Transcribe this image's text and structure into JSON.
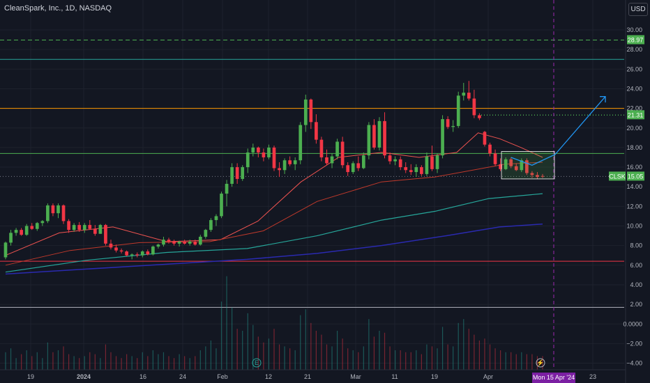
{
  "header": {
    "title": "CleanSpark, Inc., 1D, NASDAQ",
    "currency_button": "USD"
  },
  "colors": {
    "background": "#131722",
    "up": "#26a69a",
    "up_body": "#4caf50",
    "down": "#f23645",
    "ma_short": "#ef5350",
    "ma_mid": "#26a69a",
    "ma_long": "#2a2ab0",
    "crosshair": "#9c27b0",
    "projection": "#2196f3"
  },
  "badges": {
    "level_2897": "28.97",
    "level_2131": "21.31",
    "ticker": "CLSK",
    "last_price": "15.05"
  },
  "crosshair_date": "Mon 15 Apr '24",
  "chart_data": {
    "type": "candlestick",
    "y_ticks": [
      "30.00",
      "28.00",
      "26.00",
      "24.00",
      "22.00",
      "20.00",
      "18.00",
      "16.00",
      "14.00",
      "12.00",
      "10.00",
      "8.00",
      "6.00",
      "4.00",
      "2.00",
      "0.0000",
      "−2.00",
      "−4.00"
    ],
    "x_ticks": [
      "19",
      "2024",
      "16",
      "24",
      "Feb",
      "12",
      "21",
      "Mar",
      "11",
      "19",
      "Apr",
      "23"
    ],
    "horizontal_levels": [
      {
        "value": 28.97,
        "style": "dashed",
        "color": "#4caf50"
      },
      {
        "value": 27.0,
        "style": "solid",
        "color": "#26a69a"
      },
      {
        "value": 22.0,
        "style": "solid",
        "color": "#ff9800"
      },
      {
        "value": 21.31,
        "style": "dotted",
        "color": "#4caf50"
      },
      {
        "value": 17.4,
        "style": "solid",
        "color": "#4caf50"
      },
      {
        "value": 15.05,
        "style": "dotted",
        "color": "#787b86"
      },
      {
        "value": 6.4,
        "style": "solid",
        "color": "#f23645"
      },
      {
        "value": 1.7,
        "style": "solid",
        "color": "#b2b5be"
      }
    ],
    "candles": [
      [
        6.8,
        8.4,
        6.6,
        8.3
      ],
      [
        8.3,
        9.6,
        8.0,
        9.3
      ],
      [
        9.3,
        9.8,
        9.0,
        9.6
      ],
      [
        9.6,
        9.8,
        9.0,
        9.1
      ],
      [
        9.1,
        10.2,
        9.0,
        10.0
      ],
      [
        10.0,
        10.3,
        9.6,
        9.7
      ],
      [
        9.7,
        10.4,
        9.5,
        10.3
      ],
      [
        10.3,
        10.6,
        10.0,
        10.5
      ],
      [
        10.5,
        12.3,
        10.3,
        12.1
      ],
      [
        12.1,
        12.3,
        11.0,
        11.3
      ],
      [
        11.3,
        12.3,
        10.8,
        12.1
      ],
      [
        12.1,
        12.2,
        10.2,
        10.5
      ],
      [
        10.5,
        10.7,
        9.3,
        9.6
      ],
      [
        9.6,
        10.3,
        9.4,
        10.1
      ],
      [
        10.1,
        10.4,
        9.4,
        9.6
      ],
      [
        9.6,
        10.3,
        9.3,
        10.1
      ],
      [
        10.1,
        10.6,
        9.6,
        9.7
      ],
      [
        9.7,
        10.1,
        9.0,
        9.2
      ],
      [
        9.2,
        10.2,
        9.2,
        10.1
      ],
      [
        10.1,
        10.2,
        8.0,
        8.2
      ],
      [
        8.2,
        8.6,
        7.6,
        7.8
      ],
      [
        7.8,
        8.1,
        7.3,
        7.5
      ],
      [
        7.5,
        7.7,
        7.2,
        7.4
      ],
      [
        7.4,
        7.5,
        6.9,
        7.0
      ],
      [
        7.0,
        7.2,
        6.6,
        7.1
      ],
      [
        7.1,
        7.3,
        6.8,
        7.0
      ],
      [
        7.0,
        7.5,
        6.8,
        7.4
      ],
      [
        7.4,
        7.6,
        7.0,
        7.1
      ],
      [
        7.1,
        8.0,
        7.0,
        7.9
      ],
      [
        7.9,
        8.2,
        7.7,
        8.1
      ],
      [
        8.1,
        8.9,
        7.9,
        8.6
      ],
      [
        8.6,
        8.8,
        8.2,
        8.4
      ],
      [
        8.4,
        8.6,
        8.0,
        8.2
      ],
      [
        8.2,
        8.5,
        7.9,
        8.4
      ],
      [
        8.4,
        8.6,
        8.1,
        8.2
      ],
      [
        8.2,
        8.6,
        8.0,
        8.4
      ],
      [
        8.4,
        8.6,
        8.0,
        8.1
      ],
      [
        8.1,
        9.1,
        8.0,
        8.9
      ],
      [
        8.9,
        9.7,
        8.7,
        9.6
      ],
      [
        9.6,
        10.8,
        9.4,
        10.6
      ],
      [
        10.6,
        11.2,
        10.0,
        11.0
      ],
      [
        11.0,
        13.5,
        10.8,
        13.3
      ],
      [
        13.3,
        14.7,
        12.0,
        14.3
      ],
      [
        14.3,
        16.4,
        14.0,
        16.0
      ],
      [
        16.0,
        16.4,
        14.3,
        14.8
      ],
      [
        14.8,
        16.2,
        14.6,
        16.0
      ],
      [
        16.0,
        17.9,
        15.4,
        17.5
      ],
      [
        17.5,
        18.4,
        17.1,
        18.0
      ],
      [
        18.0,
        18.1,
        17.0,
        17.5
      ],
      [
        17.5,
        17.9,
        16.6,
        17.0
      ],
      [
        17.0,
        18.3,
        16.8,
        18.0
      ],
      [
        18.0,
        18.2,
        15.6,
        15.9
      ],
      [
        15.9,
        16.5,
        15.0,
        15.7
      ],
      [
        15.7,
        16.9,
        15.3,
        16.7
      ],
      [
        16.7,
        17.1,
        16.1,
        16.3
      ],
      [
        16.3,
        17.0,
        15.7,
        16.7
      ],
      [
        16.7,
        20.6,
        16.3,
        20.3
      ],
      [
        20.3,
        23.4,
        19.6,
        22.9
      ],
      [
        22.9,
        23.0,
        19.9,
        20.6
      ],
      [
        20.6,
        21.4,
        18.4,
        18.8
      ],
      [
        18.8,
        19.1,
        16.6,
        17.0
      ],
      [
        17.0,
        17.8,
        16.2,
        16.4
      ],
      [
        16.4,
        17.4,
        15.9,
        17.1
      ],
      [
        17.1,
        18.9,
        16.8,
        18.6
      ],
      [
        18.6,
        19.1,
        15.9,
        16.2
      ],
      [
        16.2,
        16.5,
        15.1,
        15.5
      ],
      [
        15.5,
        16.6,
        15.3,
        16.4
      ],
      [
        16.4,
        17.1,
        15.6,
        15.9
      ],
      [
        15.9,
        17.5,
        15.8,
        17.2
      ],
      [
        17.2,
        20.6,
        16.8,
        20.3
      ],
      [
        20.3,
        20.9,
        17.8,
        18.0
      ],
      [
        18.0,
        21.1,
        17.7,
        20.7
      ],
      [
        20.7,
        21.6,
        16.9,
        17.2
      ],
      [
        17.2,
        17.5,
        16.3,
        16.6
      ],
      [
        16.6,
        17.1,
        16.2,
        16.8
      ],
      [
        16.8,
        17.1,
        15.7,
        16.0
      ],
      [
        16.0,
        16.5,
        15.4,
        15.7
      ],
      [
        15.7,
        16.3,
        15.2,
        15.5
      ],
      [
        15.5,
        16.3,
        15.0,
        16.0
      ],
      [
        16.0,
        16.2,
        15.1,
        15.3
      ],
      [
        15.3,
        17.5,
        15.1,
        17.1
      ],
      [
        17.1,
        18.2,
        15.6,
        15.8
      ],
      [
        15.8,
        17.4,
        15.4,
        17.2
      ],
      [
        17.2,
        21.3,
        16.9,
        20.9
      ],
      [
        20.9,
        21.2,
        19.9,
        20.1
      ],
      [
        20.1,
        20.8,
        19.6,
        20.2
      ],
      [
        20.2,
        23.7,
        20.0,
        23.3
      ],
      [
        23.3,
        24.6,
        22.8,
        23.6
      ],
      [
        23.6,
        24.8,
        22.8,
        23.0
      ],
      [
        23.0,
        23.9,
        21.0,
        21.3
      ],
      [
        21.3,
        21.5,
        20.8,
        21.0
      ],
      [
        19.6,
        19.7,
        18.1,
        18.3
      ],
      [
        18.3,
        18.5,
        17.1,
        17.4
      ],
      [
        17.4,
        17.8,
        16.1,
        16.3
      ],
      [
        16.3,
        16.9,
        15.6,
        15.8
      ],
      [
        15.8,
        17.0,
        15.7,
        16.8
      ],
      [
        16.8,
        17.0,
        15.9,
        16.1
      ],
      [
        16.1,
        16.4,
        15.6,
        15.7
      ],
      [
        15.7,
        16.9,
        15.5,
        16.7
      ],
      [
        16.7,
        16.9,
        15.2,
        15.4
      ],
      [
        15.4,
        15.6,
        14.9,
        15.2
      ],
      [
        15.2,
        15.5,
        14.8,
        15.0
      ],
      [
        15.1,
        15.3,
        14.9,
        15.05
      ]
    ],
    "ma_short": [
      [
        0,
        7.0
      ],
      [
        10,
        9.3
      ],
      [
        20,
        9.9
      ],
      [
        30,
        8.4
      ],
      [
        40,
        8.6
      ],
      [
        47,
        10.5
      ],
      [
        55,
        14.5
      ],
      [
        62,
        17.0
      ],
      [
        70,
        17.5
      ],
      [
        77,
        17.0
      ],
      [
        84,
        17.5
      ],
      [
        88,
        19.5
      ],
      [
        92,
        18.9
      ],
      [
        96,
        18.0
      ],
      [
        100,
        17.0
      ]
    ],
    "ma_mid": [
      [
        0,
        6.0
      ],
      [
        12,
        7.5
      ],
      [
        25,
        8.3
      ],
      [
        38,
        8.4
      ],
      [
        48,
        9.5
      ],
      [
        58,
        12.5
      ],
      [
        70,
        14.5
      ],
      [
        80,
        15.0
      ],
      [
        88,
        15.8
      ],
      [
        93,
        16.3
      ],
      [
        100,
        16.5
      ]
    ],
    "ma_teal": [
      [
        0,
        5.3
      ],
      [
        15,
        6.5
      ],
      [
        30,
        7.3
      ],
      [
        45,
        7.7
      ],
      [
        58,
        9.0
      ],
      [
        70,
        10.6
      ],
      [
        80,
        11.5
      ],
      [
        90,
        12.8
      ],
      [
        100,
        13.3
      ]
    ],
    "ma_long": [
      [
        0,
        5.1
      ],
      [
        15,
        5.6
      ],
      [
        30,
        6.1
      ],
      [
        45,
        6.6
      ],
      [
        58,
        7.2
      ],
      [
        70,
        8.0
      ],
      [
        82,
        9.0
      ],
      [
        92,
        9.9
      ],
      [
        100,
        10.2
      ]
    ],
    "volume": [
      0.9,
      1.1,
      0.6,
      0.8,
      1.0,
      0.7,
      0.9,
      0.6,
      1.4,
      0.9,
      1.0,
      1.2,
      0.8,
      0.7,
      0.6,
      0.7,
      0.9,
      0.8,
      0.6,
      1.3,
      0.9,
      0.7,
      0.6,
      0.8,
      0.7,
      0.6,
      0.9,
      0.7,
      1.0,
      0.8,
      0.9,
      0.7,
      0.6,
      0.8,
      0.7,
      0.6,
      0.7,
      1.0,
      1.2,
      1.5,
      1.1,
      3.5,
      4.8,
      3.2,
      2.1,
      2.0,
      2.9,
      2.3,
      1.7,
      1.4,
      1.6,
      2.1,
      1.3,
      1.2,
      1.1,
      1.0,
      2.8,
      3.1,
      2.4,
      2.0,
      1.8,
      1.3,
      1.2,
      2.0,
      1.6,
      1.1,
      1.0,
      0.9,
      1.2,
      2.6,
      1.7,
      2.0,
      1.9,
      1.2,
      1.0,
      1.0,
      0.9,
      0.9,
      1.0,
      0.8,
      1.3,
      1.2,
      1.1,
      2.2,
      1.3,
      1.2,
      2.4,
      2.6,
      2.1,
      1.8,
      1.5,
      1.6,
      1.3,
      1.1,
      1.0,
      0.9,
      0.9,
      0.8,
      0.9,
      0.8,
      0.8,
      0.7,
      0.7
    ]
  }
}
